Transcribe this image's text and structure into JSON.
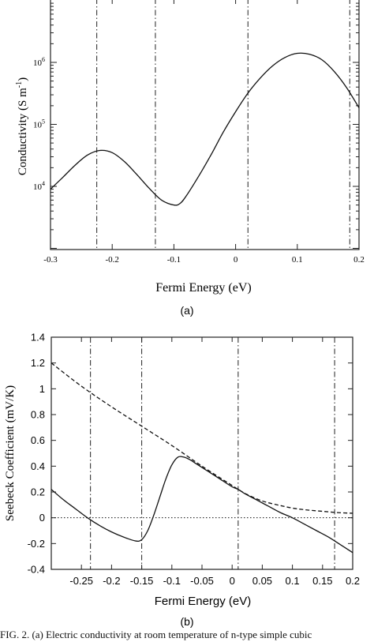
{
  "chart_data": [
    {
      "type": "line",
      "panel_label": "(a)",
      "xlabel": "Fermi Energy (eV)",
      "ylabel": "Conductivity (S m",
      "ylabel_sup": "-1",
      "ylabel_close": ")",
      "yscale": "log",
      "xlim": [
        -0.3,
        0.2
      ],
      "x_ticks": [
        "-0.3",
        "-0.2",
        "-0.1",
        "0",
        "0.1",
        "0.2"
      ],
      "y_ticks": [
        {
          "value": 10000,
          "base": "10",
          "exp": "4"
        },
        {
          "value": 100000,
          "base": "10",
          "exp": "5"
        },
        {
          "value": 1000000,
          "base": "10",
          "exp": "6"
        }
      ],
      "series": [
        {
          "style": "solid",
          "x": [
            -0.3,
            -0.28,
            -0.26,
            -0.24,
            -0.22,
            -0.2,
            -0.18,
            -0.16,
            -0.14,
            -0.12,
            -0.1,
            -0.09,
            -0.08,
            -0.06,
            -0.04,
            -0.02,
            0.0,
            0.02,
            0.04,
            0.06,
            0.08,
            0.1,
            0.12,
            0.14,
            0.16,
            0.18,
            0.2
          ],
          "y": [
            9000,
            14000,
            22000,
            32000,
            38000,
            35000,
            25000,
            15500,
            9300,
            6000,
            5000,
            5300,
            7000,
            14500,
            32000,
            75000,
            160000,
            320000,
            560000,
            880000,
            1200000,
            1400000,
            1350000,
            1100000,
            710000,
            390000,
            185000
          ]
        }
      ],
      "vertical_lines": [
        -0.225,
        -0.13,
        0.02,
        0.185
      ],
      "grid": false
    },
    {
      "type": "line",
      "panel_label": "(b)",
      "xlabel": "Fermi Energy (eV)",
      "ylabel": "Seebeck Coefficient (mV/K)",
      "xlim": [
        -0.3,
        0.2
      ],
      "ylim": [
        -0.4,
        1.4
      ],
      "x_ticks": [
        "-0.25",
        "-0.2",
        "-0.15",
        "-0.1",
        "-0.05",
        "0",
        "0.05",
        "0.1",
        "0.15",
        "0.2"
      ],
      "y_ticks": [
        "-0.4",
        "-0.2",
        "0",
        "0.2",
        "0.4",
        "0.6",
        "0.8",
        "1",
        "1.2",
        "1.4"
      ],
      "series": [
        {
          "style": "solid",
          "x": [
            -0.3,
            -0.28,
            -0.26,
            -0.24,
            -0.22,
            -0.2,
            -0.18,
            -0.16,
            -0.15,
            -0.14,
            -0.13,
            -0.12,
            -0.11,
            -0.1,
            -0.09,
            -0.08,
            -0.07,
            -0.06,
            -0.05,
            -0.04,
            -0.02,
            0.0,
            0.01,
            0.02,
            0.04,
            0.06,
            0.08,
            0.1,
            0.12,
            0.14,
            0.16,
            0.18,
            0.2
          ],
          "y": [
            0.22,
            0.14,
            0.07,
            0.0,
            -0.06,
            -0.11,
            -0.15,
            -0.18,
            -0.17,
            -0.1,
            0.02,
            0.16,
            0.3,
            0.41,
            0.47,
            0.47,
            0.45,
            0.42,
            0.39,
            0.36,
            0.3,
            0.24,
            0.22,
            0.19,
            0.14,
            0.09,
            0.04,
            0.0,
            -0.05,
            -0.1,
            -0.15,
            -0.21,
            -0.27
          ]
        },
        {
          "style": "dashed",
          "x": [
            -0.3,
            -0.25,
            -0.2,
            -0.15,
            -0.1,
            -0.05,
            0.0,
            0.01,
            0.025,
            0.05,
            0.075,
            0.1,
            0.125,
            0.15,
            0.175,
            0.2
          ],
          "y": [
            1.2,
            1.02,
            0.86,
            0.71,
            0.56,
            0.4,
            0.25,
            0.22,
            0.18,
            0.13,
            0.1,
            0.075,
            0.06,
            0.05,
            0.04,
            0.035
          ]
        },
        {
          "style": "dotted",
          "x": [
            -0.3,
            0.2
          ],
          "y": [
            0.0,
            0.0
          ]
        }
      ],
      "vertical_lines": [
        -0.235,
        -0.15,
        0.01,
        0.17
      ],
      "grid": false
    }
  ],
  "caption": "FIG. 2. (a) Electric conductivity at room temperature of n-type simple cubic"
}
